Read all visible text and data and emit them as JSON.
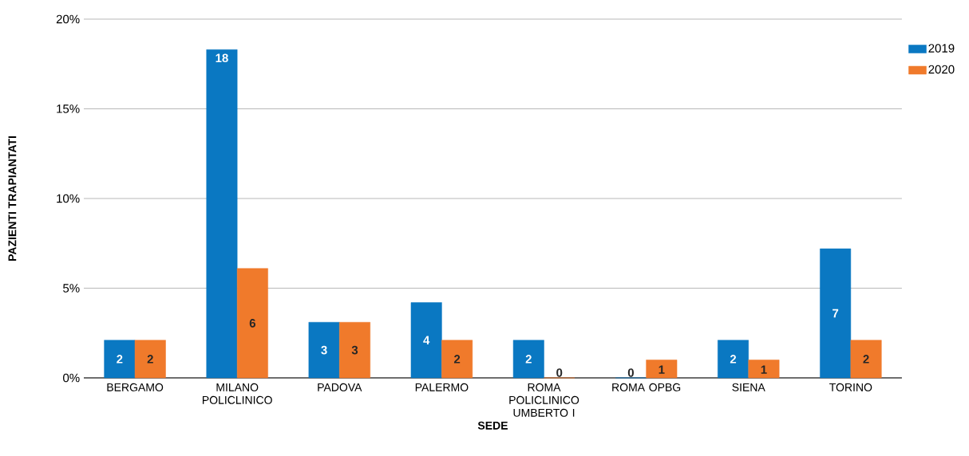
{
  "chart_data": {
    "type": "bar",
    "xlabel": "SEDE",
    "ylabel": "PAZIENTI TRAPIANTATI",
    "categories": [
      "BERGAMO",
      "MILANO POLICLINICO",
      "PADOVA",
      "PALERMO",
      "ROMA POLICLINICO UMBERTO I",
      "ROMA OPBG",
      "SIENA",
      "TORINO"
    ],
    "series": [
      {
        "name": "2019",
        "color": "#0a78c2",
        "values": [
          2.1,
          18.3,
          3.1,
          4.2,
          2.1,
          0,
          2.1,
          7.2
        ],
        "value_labels": [
          "2",
          "18",
          "3",
          "4",
          "2",
          "0",
          "2",
          "7"
        ]
      },
      {
        "name": "2020",
        "color": "#f07a2b",
        "values": [
          2.1,
          6.1,
          3.1,
          2.1,
          0,
          1.0,
          1.0,
          2.1
        ],
        "value_labels": [
          "2",
          "6",
          "3",
          "2",
          "0",
          "1",
          "1",
          "2"
        ]
      }
    ],
    "ylim": [
      0,
      20
    ],
    "yticks": [
      {
        "value": 0,
        "label": "0%"
      },
      {
        "value": 5,
        "label": "5%"
      },
      {
        "value": 10,
        "label": "10%"
      },
      {
        "value": 15,
        "label": "15%"
      },
      {
        "value": 20,
        "label": "20%"
      }
    ],
    "grid": "y",
    "legend": "top right"
  }
}
